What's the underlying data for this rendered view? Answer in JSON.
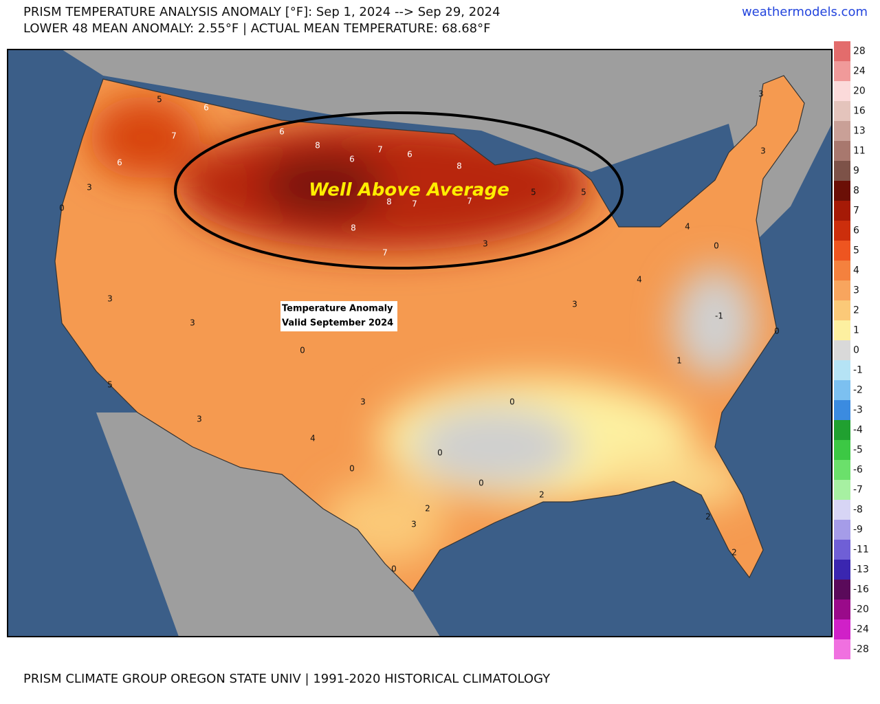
{
  "header": {
    "title": "PRISM TEMPERATURE ANALYSIS ANOMALY [°F]: Sep 1, 2024 --> Sep 29, 2024",
    "subtitle": "LOWER 48 MEAN ANOMALY: 2.55°F | ACTUAL MEAN TEMPERATURE: 68.68°F",
    "site": "weathermodels.com"
  },
  "map": {
    "annotation": "Well Above Average",
    "label_box": [
      "Temperature Anomaly",
      "Valid September 2024"
    ],
    "values": [
      6,
      5,
      7,
      6,
      8,
      7,
      6,
      8,
      6,
      8,
      7,
      8,
      7,
      7,
      5,
      5,
      3,
      3,
      4,
      0,
      3,
      3,
      4,
      6,
      3,
      0,
      3,
      3,
      3,
      0,
      3,
      0,
      0,
      0,
      0,
      2,
      3,
      0,
      2,
      2,
      2,
      1,
      -1,
      0,
      5,
      4
    ]
  },
  "legend": {
    "items": [
      {
        "label": 28,
        "color": "#e36c6c"
      },
      {
        "label": 24,
        "color": "#f09a9a"
      },
      {
        "label": 20,
        "color": "#fbdada"
      },
      {
        "label": 16,
        "color": "#e4c4bc"
      },
      {
        "label": 13,
        "color": "#c9a097"
      },
      {
        "label": 11,
        "color": "#a8786e"
      },
      {
        "label": 9,
        "color": "#7d5248"
      },
      {
        "label": 8,
        "color": "#6b0f06"
      },
      {
        "label": 7,
        "color": "#a51a06"
      },
      {
        "label": 6,
        "color": "#cc2e0c"
      },
      {
        "label": 5,
        "color": "#ee5520"
      },
      {
        "label": 4,
        "color": "#f4813e"
      },
      {
        "label": 3,
        "color": "#f8a55e"
      },
      {
        "label": 2,
        "color": "#fbc978"
      },
      {
        "label": 1,
        "color": "#fdf0a0"
      },
      {
        "label": 0,
        "color": "#d9d9d9"
      },
      {
        "label": -1,
        "color": "#b5e3f5"
      },
      {
        "label": -2,
        "color": "#7cc0f0"
      },
      {
        "label": -3,
        "color": "#3b8be0"
      },
      {
        "label": -4,
        "color": "#20a030"
      },
      {
        "label": -5,
        "color": "#3cc844"
      },
      {
        "label": -6,
        "color": "#6be06b"
      },
      {
        "label": -7,
        "color": "#a7f0a2"
      },
      {
        "label": -8,
        "color": "#d7d5f5"
      },
      {
        "label": -9,
        "color": "#a59ce8"
      },
      {
        "label": -11,
        "color": "#6f5fd6"
      },
      {
        "label": -13,
        "color": "#3a26b0"
      },
      {
        "label": -16,
        "color": "#5a0a5a"
      },
      {
        "label": -20,
        "color": "#9a0a8a"
      },
      {
        "label": -24,
        "color": "#d020c8"
      },
      {
        "label": -28,
        "color": "#f070e0"
      }
    ]
  },
  "footer": "PRISM CLIMATE GROUP OREGON STATE UNIV | 1991-2020 HISTORICAL CLIMATOLOGY"
}
